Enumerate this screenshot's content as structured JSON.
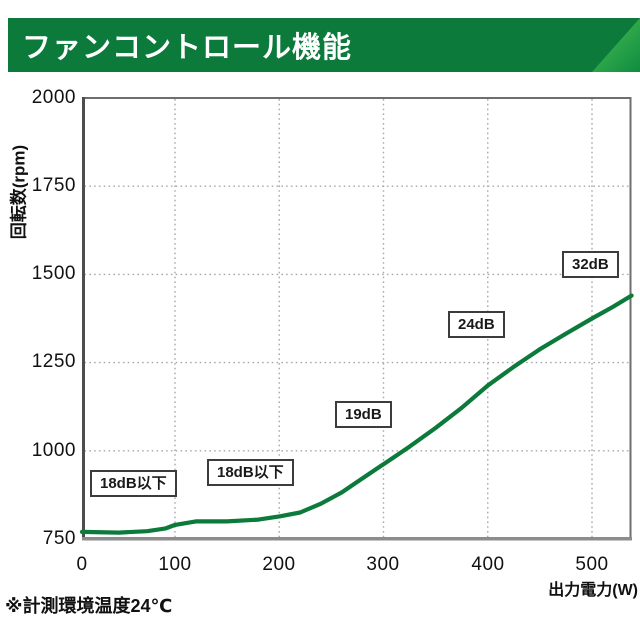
{
  "header": {
    "title": "ファンコントロール機能"
  },
  "footnote": "※計測環境温度24℃",
  "colors": {
    "banner_green": "#0c7a3b",
    "banner_accent_light": "#55bf59",
    "banner_accent_dark": "#0f8c3f",
    "curve_green": "#0b7a3a",
    "grid_gray": "#a8a8a8",
    "axis_gray": "#555555"
  },
  "chart_data": {
    "type": "line",
    "title": "",
    "xlabel": "出力電力(W)",
    "ylabel": "回転数(rpm)",
    "xlim": [
      0,
      540
    ],
    "ylim": [
      750,
      2000
    ],
    "xticks": [
      0,
      100,
      200,
      300,
      400,
      500
    ],
    "yticks": [
      2000,
      1750,
      1500,
      1250,
      1000,
      750
    ],
    "grid": "dotted",
    "legend": "none",
    "series": [
      {
        "name": "fan-rpm-vs-output-power",
        "color": "#0b7a3a",
        "points": [
          [
            0,
            770
          ],
          [
            40,
            768
          ],
          [
            70,
            772
          ],
          [
            90,
            780
          ],
          [
            100,
            790
          ],
          [
            120,
            800
          ],
          [
            150,
            800
          ],
          [
            180,
            805
          ],
          [
            200,
            814
          ],
          [
            220,
            825
          ],
          [
            240,
            850
          ],
          [
            260,
            882
          ],
          [
            280,
            922
          ],
          [
            300,
            962
          ],
          [
            325,
            1012
          ],
          [
            350,
            1065
          ],
          [
            375,
            1122
          ],
          [
            400,
            1185
          ],
          [
            425,
            1238
          ],
          [
            450,
            1288
          ],
          [
            475,
            1332
          ],
          [
            500,
            1375
          ],
          [
            520,
            1408
          ],
          [
            538,
            1440
          ]
        ]
      }
    ],
    "annotations": [
      {
        "label": "18dB以下",
        "x": 55,
        "y": 905
      },
      {
        "label": "18dB以下",
        "x": 170,
        "y": 940
      },
      {
        "label": "19dB",
        "x": 283,
        "y": 1105
      },
      {
        "label": "24dB",
        "x": 392,
        "y": 1360
      },
      {
        "label": "32dB",
        "x": 501,
        "y": 1530
      }
    ]
  }
}
